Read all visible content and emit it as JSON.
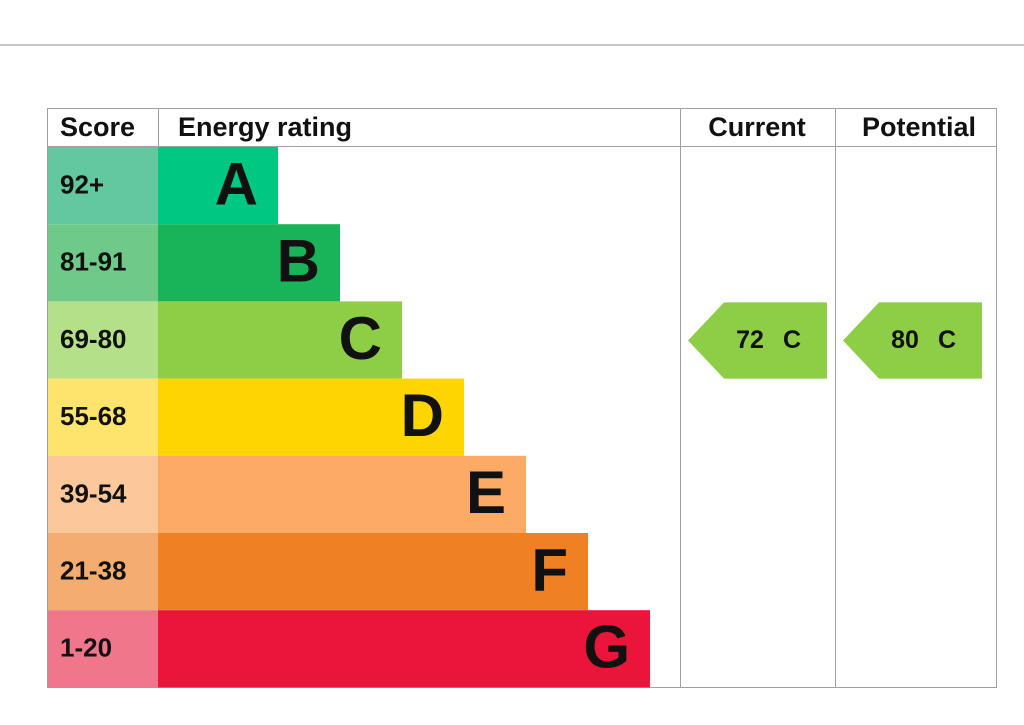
{
  "header": {
    "score": "Score",
    "rating": "Energy rating",
    "current": "Current",
    "potential": "Potential"
  },
  "bands": [
    {
      "score": "92+",
      "letter": "A"
    },
    {
      "score": "81-91",
      "letter": "B"
    },
    {
      "score": "69-80",
      "letter": "C"
    },
    {
      "score": "55-68",
      "letter": "D"
    },
    {
      "score": "39-54",
      "letter": "E"
    },
    {
      "score": "21-38",
      "letter": "F"
    },
    {
      "score": "1-20",
      "letter": "G"
    }
  ],
  "current": {
    "value": "72",
    "letter": "C"
  },
  "potential": {
    "value": "80",
    "letter": "C"
  }
}
